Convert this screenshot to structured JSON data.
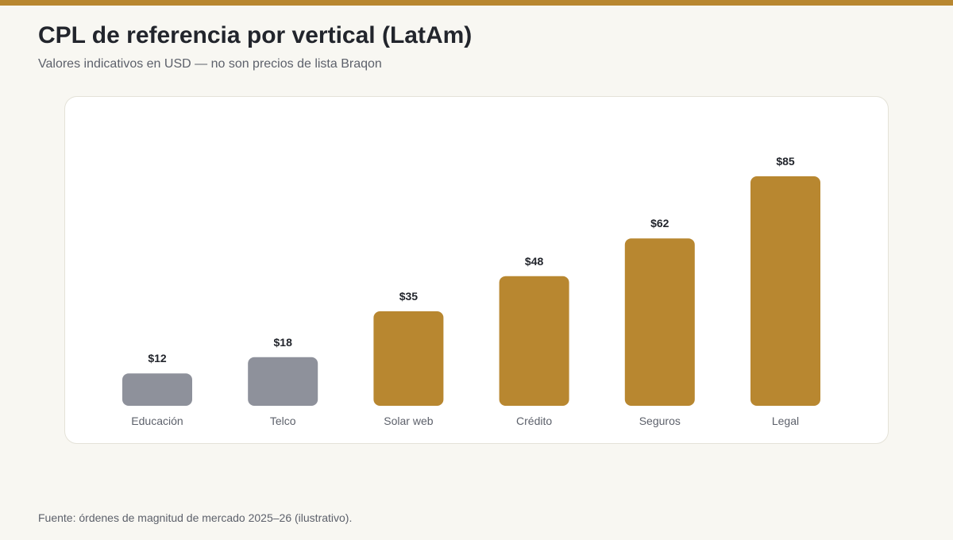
{
  "header": {
    "title": "CPL de referencia por vertical (LatAm)",
    "subtitle": "Valores indicativos en USD — no son precios de lista Braqon"
  },
  "footer": {
    "source": "Fuente: órdenes de magnitud de mercado 2025–26 (ilustrativo)."
  },
  "colors": {
    "accent": "#b88730",
    "muted": "#8e919b",
    "text": "#22252c",
    "secondary_text": "#5d616b"
  },
  "chart_data": {
    "type": "bar",
    "title": "CPL de referencia por vertical (LatAm)",
    "xlabel": "",
    "ylabel": "",
    "ylim": [
      0,
      85
    ],
    "grid": false,
    "legend": "none",
    "categories": [
      "Educación",
      "Telco",
      "Solar web",
      "Crédito",
      "Seguros",
      "Legal"
    ],
    "values": [
      12,
      18,
      35,
      48,
      62,
      85
    ],
    "value_labels": [
      "$12",
      "$18",
      "$35",
      "$48",
      "$62",
      "$85"
    ],
    "bar_colors": [
      "#8e919b",
      "#8e919b",
      "#b88730",
      "#b88730",
      "#b88730",
      "#b88730"
    ]
  }
}
